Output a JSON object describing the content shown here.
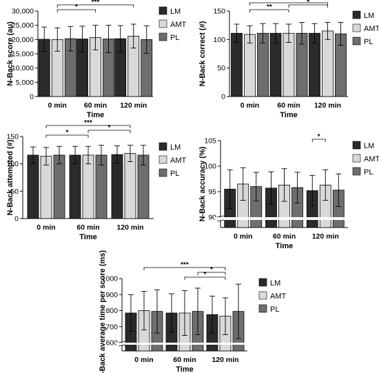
{
  "legend": {
    "labels": [
      "LM",
      "AMT",
      "PL"
    ],
    "colors": [
      "#2b2b2b",
      "#d9d9d9",
      "#6e6e6e"
    ]
  },
  "chart_data": [
    {
      "type": "bar",
      "categories": [
        "0 min",
        "60 min",
        "120 min"
      ],
      "xlabel": "Time",
      "ylabel": "N-Back score (au)",
      "ylim": [
        0,
        30000
      ],
      "yticks": [
        "0",
        "5,000",
        "10,000",
        "15,000",
        "20,000",
        "25,000",
        "30,000"
      ],
      "series": [
        {
          "name": "LM",
          "values": [
            20100,
            20200,
            20300
          ],
          "errors": [
            4300,
            4500,
            4600
          ]
        },
        {
          "name": "AMT",
          "values": [
            20000,
            20700,
            21200
          ],
          "errors": [
            4100,
            4300,
            4200
          ]
        },
        {
          "name": "PL",
          "values": [
            20300,
            20200,
            20000
          ],
          "errors": [
            4300,
            4800,
            4800
          ]
        }
      ],
      "significance": [
        {
          "from": [
            0,
            1
          ],
          "to": [
            1,
            1
          ],
          "label": "*"
        },
        {
          "from": [
            0,
            1
          ],
          "to": [
            2,
            1
          ],
          "label": "***"
        }
      ]
    },
    {
      "type": "bar",
      "categories": [
        "0 min",
        "60 min",
        "120 min"
      ],
      "xlabel": "Time",
      "ylabel": "N-Back correct (#)",
      "ylim": [
        0,
        150
      ],
      "yticks": [
        "0",
        "50",
        "100",
        "150"
      ],
      "series": [
        {
          "name": "LM",
          "values": [
            111,
            111,
            111
          ],
          "errors": [
            16,
            17,
            17
          ]
        },
        {
          "name": "AMT",
          "values": [
            109,
            111,
            115
          ],
          "errors": [
            15,
            16,
            15
          ]
        },
        {
          "name": "PL",
          "values": [
            111,
            111,
            110
          ],
          "errors": [
            17,
            19,
            20
          ]
        }
      ],
      "significance": [
        {
          "from": [
            0,
            1
          ],
          "to": [
            1,
            1
          ],
          "label": "**"
        },
        {
          "from": [
            1,
            1
          ],
          "to": [
            2,
            1
          ],
          "label": "*"
        },
        {
          "from": [
            0,
            1
          ],
          "to": [
            2,
            1
          ],
          "label": "***"
        }
      ]
    },
    {
      "type": "bar",
      "categories": [
        "0 min",
        "60 min",
        "120 min"
      ],
      "xlabel": "Time",
      "ylabel": "N-Back attempted (#)",
      "ylim": [
        0,
        150
      ],
      "yticks": [
        "0",
        "50",
        "100",
        "150"
      ],
      "series": [
        {
          "name": "LM",
          "values": [
            116,
            116,
            117
          ],
          "errors": [
            15,
            16,
            16
          ]
        },
        {
          "name": "AMT",
          "values": [
            114,
            116,
            119
          ],
          "errors": [
            16,
            16,
            15
          ]
        },
        {
          "name": "PL",
          "values": [
            116,
            116,
            116
          ],
          "errors": [
            16,
            18,
            18
          ]
        }
      ],
      "significance": [
        {
          "from": [
            0,
            1
          ],
          "to": [
            1,
            1
          ],
          "label": "*"
        },
        {
          "from": [
            1,
            1
          ],
          "to": [
            2,
            1
          ],
          "label": "*"
        },
        {
          "from": [
            0,
            1
          ],
          "to": [
            2,
            1
          ],
          "label": "***"
        }
      ]
    },
    {
      "type": "bar",
      "categories": [
        "0 min",
        "60 min",
        "120 min"
      ],
      "xlabel": "Time",
      "ylabel": "N-Back accuracy (%)",
      "ylim": [
        90,
        105
      ],
      "axis_break": true,
      "yticks": [
        "90",
        "95",
        "100",
        "105"
      ],
      "series": [
        {
          "name": "LM",
          "values": [
            95.5,
            95.7,
            95.2
          ],
          "errors": [
            3.8,
            3.2,
            3.0
          ]
        },
        {
          "name": "AMT",
          "values": [
            96.5,
            96.3,
            96.3
          ],
          "errors": [
            3.2,
            3.2,
            3.0
          ]
        },
        {
          "name": "PL",
          "values": [
            96.0,
            95.8,
            95.3
          ],
          "errors": [
            2.8,
            3.0,
            3.2
          ]
        }
      ],
      "significance": [
        {
          "from": [
            2,
            0
          ],
          "to": [
            2,
            1
          ],
          "label": "*"
        }
      ]
    },
    {
      "type": "bar",
      "categories": [
        "0 min",
        "60 min",
        "120 min"
      ],
      "xlabel": "Time",
      "ylabel": "N-Back average time per score (ms)",
      "ylim": [
        600,
        1000
      ],
      "axis_break": true,
      "yticks": [
        "600",
        "700",
        "800",
        "900",
        "1000"
      ],
      "series": [
        {
          "name": "LM",
          "values": [
            785,
            785,
            775
          ],
          "errors": [
            115,
            120,
            115
          ]
        },
        {
          "name": "AMT",
          "values": [
            800,
            785,
            765
          ],
          "errors": [
            120,
            140,
            115
          ]
        },
        {
          "name": "PL",
          "values": [
            795,
            795,
            795
          ],
          "errors": [
            135,
            145,
            170
          ]
        }
      ],
      "significance": [
        {
          "from": [
            1,
            1
          ],
          "to": [
            2,
            1
          ],
          "label": "*"
        },
        {
          "from": [
            1,
            2
          ],
          "to": [
            2,
            1
          ],
          "label": "*"
        },
        {
          "from": [
            0,
            1
          ],
          "to": [
            2,
            1
          ],
          "label": "***"
        }
      ]
    }
  ]
}
